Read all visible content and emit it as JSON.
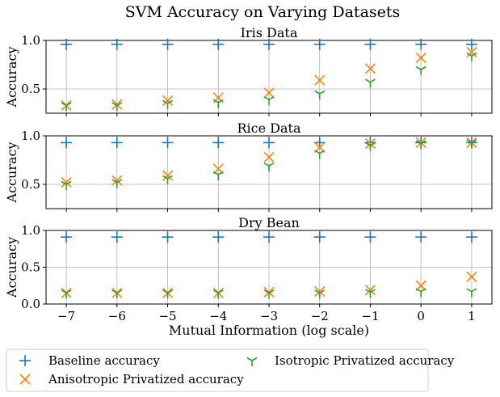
{
  "figure_title": "SVM Accuracy on Varying Datasets",
  "x_axis_label": "Mutual Information (log scale)",
  "y_axis_label": "Accuracy",
  "colors": {
    "baseline": "#1f77b4",
    "anisotropic": "#ff7f0e",
    "isotropic": "#2ca02c",
    "grid": "#b0b0b0"
  },
  "legend": {
    "entries": [
      {
        "label": "Baseline accuracy",
        "marker": "plus",
        "color": "#1f77b4"
      },
      {
        "label": "Anisotropic Privatized accuracy",
        "marker": "x",
        "color": "#ff7f0e"
      },
      {
        "label": "Isotropic Privatized accuracy",
        "marker": "tri-down",
        "color": "#2ca02c"
      }
    ]
  },
  "chart_data": [
    {
      "type": "scatter",
      "title": "Iris Data",
      "xlabel": "",
      "ylabel": "Accuracy",
      "x": [
        -7,
        -6,
        -5,
        -4,
        -3,
        -2,
        -1,
        0,
        1
      ],
      "xlim": [
        -7.4,
        1.4
      ],
      "ylim": [
        0.25,
        1.0
      ],
      "yticks": [
        0.5,
        1.0
      ],
      "ytick_labels": [
        "0.5",
        "1.0"
      ],
      "grid": true,
      "series": [
        {
          "name": "Baseline accuracy",
          "values": [
            0.96,
            0.96,
            0.96,
            0.96,
            0.96,
            0.96,
            0.96,
            0.96,
            0.96
          ]
        },
        {
          "name": "Anisotropic Privatized accuracy",
          "values": [
            0.33,
            0.34,
            0.38,
            0.41,
            0.46,
            0.59,
            0.71,
            0.82,
            0.88
          ]
        },
        {
          "name": "Isotropic Privatized accuracy",
          "values": [
            0.33,
            0.33,
            0.35,
            0.36,
            0.39,
            0.45,
            0.57,
            0.7,
            0.84
          ]
        }
      ]
    },
    {
      "type": "scatter",
      "title": "Rice Data",
      "xlabel": "",
      "ylabel": "Accuracy",
      "x": [
        -7,
        -6,
        -5,
        -4,
        -3,
        -2,
        -1,
        0,
        1
      ],
      "xlim": [
        -7.4,
        1.4
      ],
      "ylim": [
        0.25,
        1.0
      ],
      "yticks": [
        0.5,
        1.0
      ],
      "ytick_labels": [
        "0.5",
        "1.0"
      ],
      "grid": true,
      "series": [
        {
          "name": "Baseline accuracy",
          "values": [
            0.93,
            0.93,
            0.93,
            0.93,
            0.93,
            0.93,
            0.93,
            0.93,
            0.93
          ]
        },
        {
          "name": "Anisotropic Privatized accuracy",
          "values": [
            0.52,
            0.54,
            0.59,
            0.66,
            0.78,
            0.88,
            0.92,
            0.93,
            0.93
          ]
        },
        {
          "name": "Isotropic Privatized accuracy",
          "values": [
            0.5,
            0.52,
            0.56,
            0.6,
            0.69,
            0.82,
            0.9,
            0.92,
            0.93
          ]
        }
      ]
    },
    {
      "type": "scatter",
      "title": "Dry Bean",
      "xlabel": "Mutual Information (log scale)",
      "ylabel": "Accuracy",
      "x": [
        -7,
        -6,
        -5,
        -4,
        -3,
        -2,
        -1,
        0,
        1
      ],
      "xlim": [
        -7.4,
        1.4
      ],
      "ylim": [
        0.0,
        1.0
      ],
      "yticks": [
        0.0,
        0.5,
        1.0
      ],
      "ytick_labels": [
        "0.0",
        "0.5",
        "1.0"
      ],
      "xticks": [
        -7,
        -6,
        -5,
        -4,
        -3,
        -2,
        -1,
        0,
        1
      ],
      "xtick_labels": [
        "−7",
        "−6",
        "−5",
        "−4",
        "−3",
        "−2",
        "−1",
        "0",
        "1"
      ],
      "grid": true,
      "series": [
        {
          "name": "Baseline accuracy",
          "values": [
            0.91,
            0.91,
            0.91,
            0.91,
            0.91,
            0.91,
            0.91,
            0.91,
            0.91
          ]
        },
        {
          "name": "Anisotropic Privatized accuracy",
          "values": [
            0.15,
            0.15,
            0.15,
            0.15,
            0.16,
            0.17,
            0.19,
            0.25,
            0.37
          ]
        },
        {
          "name": "Isotropic Privatized accuracy",
          "values": [
            0.15,
            0.15,
            0.15,
            0.15,
            0.15,
            0.15,
            0.16,
            0.17,
            0.17
          ]
        }
      ]
    }
  ]
}
